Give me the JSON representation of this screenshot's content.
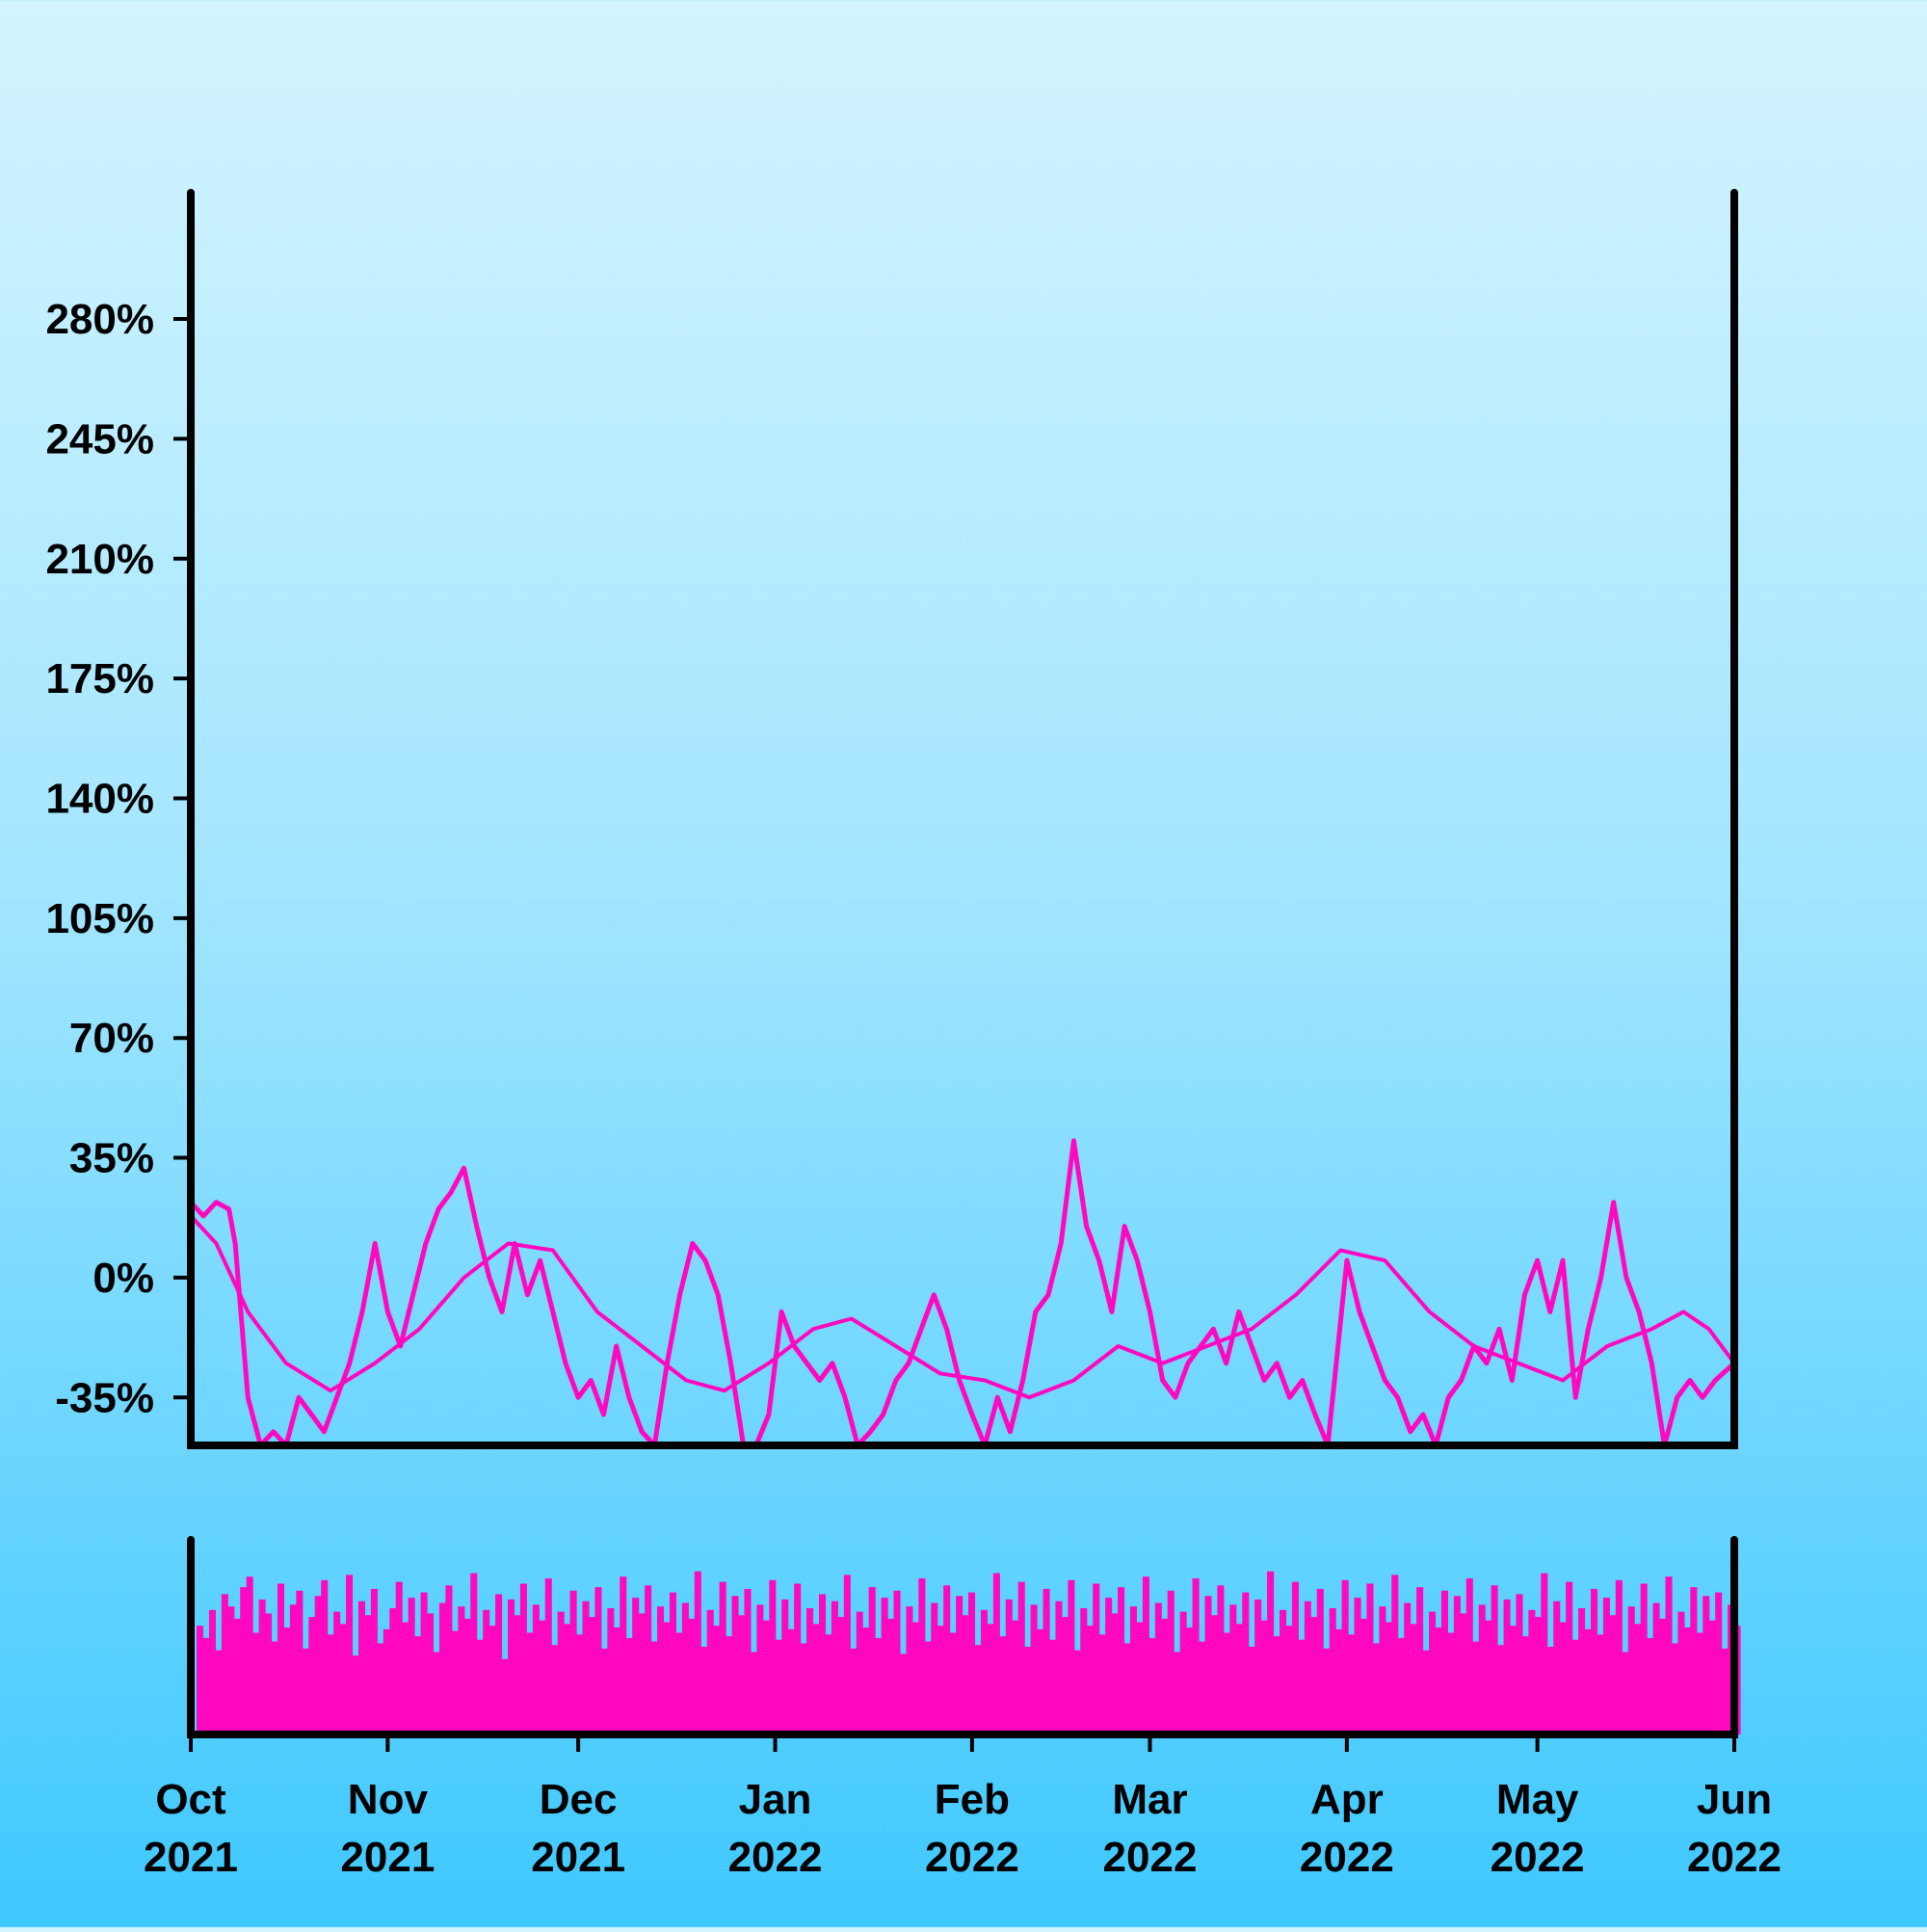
{
  "colors": {
    "background_top": "#d4f4ff",
    "background_bottom": "#3ec8ff",
    "series": "#ff08c0",
    "axis": "#000000"
  },
  "chart_data": {
    "type": "line",
    "title": "",
    "xlabel": "",
    "ylabel": "",
    "x_range": [
      "2021-10-01",
      "2022-06-01"
    ],
    "ylim": [
      -49,
      300
    ],
    "y_ticks": [
      {
        "value": -35,
        "label": "-35%"
      },
      {
        "value": 0,
        "label": "0%"
      },
      {
        "value": 35,
        "label": "35%"
      },
      {
        "value": 70,
        "label": "70%"
      },
      {
        "value": 105,
        "label": "105%"
      },
      {
        "value": 140,
        "label": "140%"
      },
      {
        "value": 175,
        "label": "175%"
      },
      {
        "value": 210,
        "label": "210%"
      },
      {
        "value": 245,
        "label": "245%"
      },
      {
        "value": 280,
        "label": "280%"
      }
    ],
    "x_ticks": [
      {
        "date": "2021-10-01",
        "month": "Oct",
        "year": "2021"
      },
      {
        "date": "2021-11-01",
        "month": "Nov",
        "year": "2021"
      },
      {
        "date": "2021-12-01",
        "month": "Dec",
        "year": "2021"
      },
      {
        "date": "2022-01-01",
        "month": "Jan",
        "year": "2022"
      },
      {
        "date": "2022-02-01",
        "month": "Feb",
        "year": "2022"
      },
      {
        "date": "2022-03-01",
        "month": "Mar",
        "year": "2022"
      },
      {
        "date": "2022-04-01",
        "month": "Apr",
        "year": "2022"
      },
      {
        "date": "2022-05-01",
        "month": "May",
        "year": "2022"
      },
      {
        "date": "2022-06-01",
        "month": "Jun",
        "year": "2022"
      }
    ],
    "grid": false,
    "legend": "none",
    "series": [
      {
        "role": "daily",
        "points": [
          [
            "2021-10-01",
            22
          ],
          [
            "2021-10-03",
            18
          ],
          [
            "2021-10-05",
            22
          ],
          [
            "2021-10-07",
            20
          ],
          [
            "2021-10-08",
            10
          ],
          [
            "2021-10-10",
            -35
          ],
          [
            "2021-10-12",
            -49
          ],
          [
            "2021-10-14",
            -45
          ],
          [
            "2021-10-16",
            -49
          ],
          [
            "2021-10-18",
            -35
          ],
          [
            "2021-10-20",
            -40
          ],
          [
            "2021-10-22",
            -45
          ],
          [
            "2021-10-24",
            -35
          ],
          [
            "2021-10-26",
            -25
          ],
          [
            "2021-10-28",
            -10
          ],
          [
            "2021-10-30",
            10
          ],
          [
            "2021-11-01",
            -10
          ],
          [
            "2021-11-03",
            -20
          ],
          [
            "2021-11-05",
            -5
          ],
          [
            "2021-11-07",
            10
          ],
          [
            "2021-11-09",
            20
          ],
          [
            "2021-11-11",
            25
          ],
          [
            "2021-11-13",
            32
          ],
          [
            "2021-11-15",
            15
          ],
          [
            "2021-11-17",
            0
          ],
          [
            "2021-11-19",
            -10
          ],
          [
            "2021-11-21",
            10
          ],
          [
            "2021-11-23",
            -5
          ],
          [
            "2021-11-25",
            5
          ],
          [
            "2021-11-27",
            -10
          ],
          [
            "2021-11-29",
            -25
          ],
          [
            "2021-12-01",
            -35
          ],
          [
            "2021-12-03",
            -30
          ],
          [
            "2021-12-05",
            -40
          ],
          [
            "2021-12-07",
            -20
          ],
          [
            "2021-12-09",
            -35
          ],
          [
            "2021-12-11",
            -45
          ],
          [
            "2021-12-13",
            -49
          ],
          [
            "2021-12-15",
            -25
          ],
          [
            "2021-12-17",
            -5
          ],
          [
            "2021-12-19",
            10
          ],
          [
            "2021-12-21",
            5
          ],
          [
            "2021-12-23",
            -5
          ],
          [
            "2021-12-25",
            -25
          ],
          [
            "2021-12-27",
            -49
          ],
          [
            "2021-12-29",
            -49
          ],
          [
            "2021-12-31",
            -40
          ],
          [
            "2022-01-02",
            -10
          ],
          [
            "2022-01-04",
            -20
          ],
          [
            "2022-01-06",
            -25
          ],
          [
            "2022-01-08",
            -30
          ],
          [
            "2022-01-10",
            -25
          ],
          [
            "2022-01-12",
            -35
          ],
          [
            "2022-01-14",
            -49
          ],
          [
            "2022-01-16",
            -45
          ],
          [
            "2022-01-18",
            -40
          ],
          [
            "2022-01-20",
            -30
          ],
          [
            "2022-01-22",
            -25
          ],
          [
            "2022-01-24",
            -15
          ],
          [
            "2022-01-26",
            -5
          ],
          [
            "2022-01-28",
            -15
          ],
          [
            "2022-01-30",
            -30
          ],
          [
            "2022-02-01",
            -40
          ],
          [
            "2022-02-03",
            -49
          ],
          [
            "2022-02-05",
            -35
          ],
          [
            "2022-02-07",
            -45
          ],
          [
            "2022-02-09",
            -30
          ],
          [
            "2022-02-11",
            -10
          ],
          [
            "2022-02-13",
            -5
          ],
          [
            "2022-02-15",
            10
          ],
          [
            "2022-02-17",
            40
          ],
          [
            "2022-02-19",
            15
          ],
          [
            "2022-02-21",
            5
          ],
          [
            "2022-02-23",
            -10
          ],
          [
            "2022-02-25",
            15
          ],
          [
            "2022-02-27",
            5
          ],
          [
            "2022-03-01",
            -10
          ],
          [
            "2022-03-03",
            -30
          ],
          [
            "2022-03-05",
            -35
          ],
          [
            "2022-03-07",
            -25
          ],
          [
            "2022-03-09",
            -20
          ],
          [
            "2022-03-11",
            -15
          ],
          [
            "2022-03-13",
            -25
          ],
          [
            "2022-03-15",
            -10
          ],
          [
            "2022-03-17",
            -20
          ],
          [
            "2022-03-19",
            -30
          ],
          [
            "2022-03-21",
            -25
          ],
          [
            "2022-03-23",
            -35
          ],
          [
            "2022-03-25",
            -30
          ],
          [
            "2022-03-27",
            -40
          ],
          [
            "2022-03-29",
            -49
          ],
          [
            "2022-04-01",
            5
          ],
          [
            "2022-04-03",
            -10
          ],
          [
            "2022-04-05",
            -20
          ],
          [
            "2022-04-07",
            -30
          ],
          [
            "2022-04-09",
            -35
          ],
          [
            "2022-04-11",
            -45
          ],
          [
            "2022-04-13",
            -40
          ],
          [
            "2022-04-15",
            -49
          ],
          [
            "2022-04-17",
            -35
          ],
          [
            "2022-04-19",
            -30
          ],
          [
            "2022-04-21",
            -20
          ],
          [
            "2022-04-23",
            -25
          ],
          [
            "2022-04-25",
            -15
          ],
          [
            "2022-04-27",
            -30
          ],
          [
            "2022-04-29",
            -5
          ],
          [
            "2022-05-01",
            5
          ],
          [
            "2022-05-03",
            -10
          ],
          [
            "2022-05-05",
            5
          ],
          [
            "2022-05-07",
            -35
          ],
          [
            "2022-05-09",
            -15
          ],
          [
            "2022-05-11",
            0
          ],
          [
            "2022-05-13",
            22
          ],
          [
            "2022-05-15",
            0
          ],
          [
            "2022-05-17",
            -10
          ],
          [
            "2022-05-19",
            -25
          ],
          [
            "2022-05-21",
            -49
          ],
          [
            "2022-05-23",
            -35
          ],
          [
            "2022-05-25",
            -30
          ],
          [
            "2022-05-27",
            -35
          ],
          [
            "2022-05-29",
            -30
          ],
          [
            "2022-06-01",
            -25
          ]
        ]
      },
      {
        "role": "moving-average",
        "points": [
          [
            "2021-10-01",
            18
          ],
          [
            "2021-10-05",
            10
          ],
          [
            "2021-10-10",
            -10
          ],
          [
            "2021-10-16",
            -25
          ],
          [
            "2021-10-23",
            -33
          ],
          [
            "2021-10-30",
            -25
          ],
          [
            "2021-11-06",
            -15
          ],
          [
            "2021-11-13",
            0
          ],
          [
            "2021-11-20",
            10
          ],
          [
            "2021-11-27",
            8
          ],
          [
            "2021-12-04",
            -10
          ],
          [
            "2021-12-11",
            -20
          ],
          [
            "2021-12-18",
            -30
          ],
          [
            "2021-12-24",
            -33
          ],
          [
            "2021-12-31",
            -25
          ],
          [
            "2022-01-07",
            -15
          ],
          [
            "2022-01-13",
            -12
          ],
          [
            "2022-01-20",
            -20
          ],
          [
            "2022-01-27",
            -28
          ],
          [
            "2022-02-03",
            -30
          ],
          [
            "2022-02-10",
            -35
          ],
          [
            "2022-02-17",
            -30
          ],
          [
            "2022-02-24",
            -20
          ],
          [
            "2022-03-03",
            -25
          ],
          [
            "2022-03-10",
            -20
          ],
          [
            "2022-03-17",
            -15
          ],
          [
            "2022-03-24",
            -5
          ],
          [
            "2022-03-31",
            8
          ],
          [
            "2022-04-07",
            5
          ],
          [
            "2022-04-14",
            -10
          ],
          [
            "2022-04-21",
            -20
          ],
          [
            "2022-04-28",
            -25
          ],
          [
            "2022-05-05",
            -30
          ],
          [
            "2022-05-12",
            -20
          ],
          [
            "2022-05-19",
            -15
          ],
          [
            "2022-05-24",
            -10
          ],
          [
            "2022-05-28",
            -15
          ],
          [
            "2022-06-01",
            -25
          ]
        ]
      }
    ],
    "volume": {
      "type": "bar",
      "bars_per_day": true,
      "values": [
        0.62,
        0.55,
        0.71,
        0.48,
        0.8,
        0.73,
        0.66,
        0.84,
        0.9,
        0.58,
        0.77,
        0.69,
        0.53,
        0.86,
        0.61,
        0.74,
        0.82,
        0.49,
        0.67,
        0.79,
        0.88,
        0.57,
        0.7,
        0.63,
        0.91,
        0.45,
        0.76,
        0.68,
        0.83,
        0.52,
        0.6,
        0.72,
        0.87,
        0.64,
        0.78,
        0.56,
        0.81,
        0.69,
        0.47,
        0.75,
        0.85,
        0.59,
        0.73,
        0.66,
        0.92,
        0.54,
        0.71,
        0.62,
        0.8,
        0.43,
        0.77,
        0.68,
        0.86,
        0.58,
        0.74,
        0.65,
        0.89,
        0.51,
        0.7,
        0.63,
        0.82,
        0.57,
        0.76,
        0.67,
        0.84,
        0.49,
        0.72,
        0.61,
        0.9,
        0.55,
        0.78,
        0.69,
        0.85,
        0.53,
        0.73,
        0.64,
        0.81,
        0.58,
        0.75,
        0.66,
        0.93,
        0.5,
        0.71,
        0.62,
        0.87,
        0.56,
        0.79,
        0.68,
        0.83,
        0.47,
        0.74,
        0.65,
        0.88,
        0.54,
        0.77,
        0.6,
        0.86,
        0.52,
        0.72,
        0.63,
        0.8,
        0.57,
        0.76,
        0.67,
        0.91,
        0.49,
        0.7,
        0.61,
        0.84,
        0.55,
        0.78,
        0.66,
        0.82,
        0.46,
        0.73,
        0.64,
        0.89,
        0.53,
        0.75,
        0.62,
        0.85,
        0.58,
        0.79,
        0.68,
        0.81,
        0.51,
        0.71,
        0.63,
        0.92,
        0.56,
        0.77,
        0.65,
        0.87,
        0.5,
        0.74,
        0.6,
        0.83,
        0.54,
        0.76,
        0.67,
        0.88,
        0.48,
        0.72,
        0.62,
        0.86,
        0.57,
        0.78,
        0.69,
        0.84,
        0.52,
        0.73,
        0.64,
        0.9,
        0.55,
        0.75,
        0.66,
        0.82,
        0.47,
        0.7,
        0.61,
        0.89,
        0.53,
        0.79,
        0.68,
        0.85,
        0.58,
        0.74,
        0.63,
        0.81,
        0.5,
        0.77,
        0.65,
        0.93,
        0.56,
        0.71,
        0.62,
        0.87,
        0.54,
        0.76,
        0.67,
        0.83,
        0.49,
        0.72,
        0.6,
        0.88,
        0.57,
        0.78,
        0.66,
        0.86,
        0.52,
        0.73,
        0.64,
        0.91,
        0.55,
        0.75,
        0.63,
        0.84,
        0.48,
        0.7,
        0.61,
        0.82,
        0.58,
        0.79,
        0.69,
        0.89,
        0.53,
        0.74,
        0.65,
        0.85,
        0.51,
        0.77,
        0.62,
        0.8,
        0.56,
        0.71,
        0.67,
        0.92,
        0.5,
        0.76,
        0.64,
        0.87,
        0.54,
        0.72,
        0.6,
        0.83,
        0.57,
        0.78,
        0.68,
        0.88,
        0.47,
        0.73,
        0.63,
        0.86,
        0.55,
        0.75,
        0.66,
        0.9,
        0.52,
        0.7,
        0.61,
        0.84,
        0.58,
        0.79,
        0.65,
        0.81,
        0.49,
        0.74,
        0.62
      ]
    }
  }
}
